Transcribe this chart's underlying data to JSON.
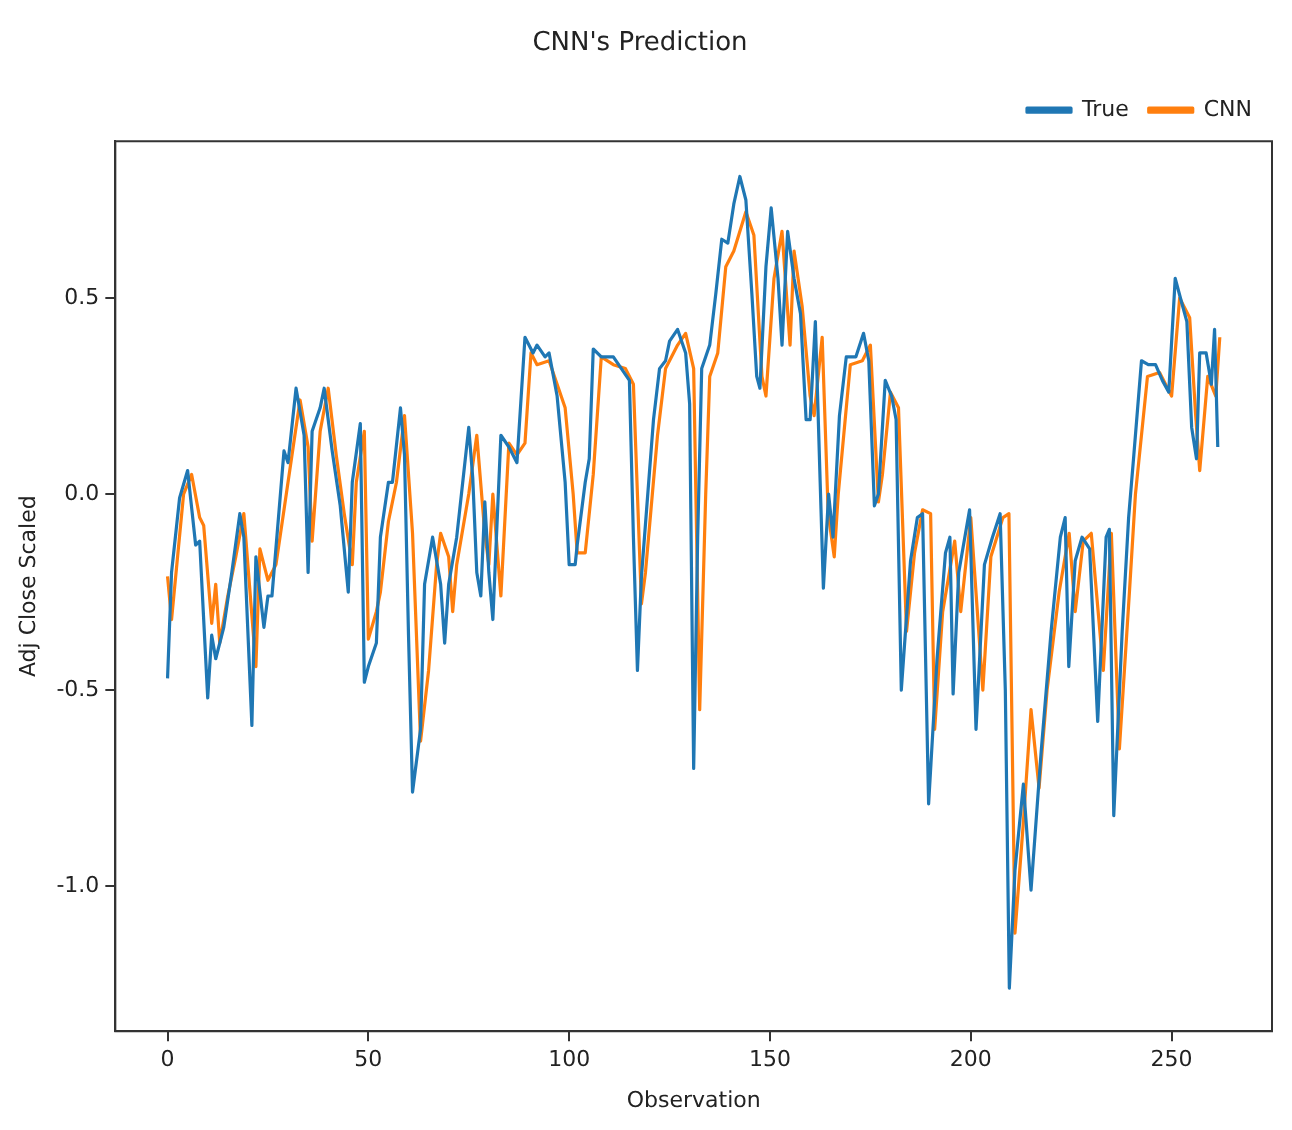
{
  "chart_data": {
    "type": "line",
    "title": "CNN's Prediction",
    "xlabel": "Observation",
    "ylabel": "Adj Close Scaled",
    "xlim": [
      -13,
      275
    ],
    "ylim": [
      -1.37,
      0.9
    ],
    "xticks": [
      0,
      50,
      100,
      150,
      200,
      250
    ],
    "yticks": [
      {
        "value": -1.0,
        "label": "-1.0"
      },
      {
        "value": -0.5,
        "label": "-0.5"
      },
      {
        "value": 0.0,
        "label": "0.0"
      },
      {
        "value": 0.5,
        "label": "0.5"
      }
    ],
    "grid": false,
    "legend": "top right",
    "marker": "none",
    "line_style": "solid",
    "series": [
      {
        "name": "True",
        "color": "#1f77b4",
        "x": [
          0,
          1,
          3,
          5,
          7,
          8,
          10,
          11,
          12,
          14,
          16,
          18,
          19,
          21,
          22,
          24,
          25,
          26,
          29,
          30,
          32,
          34,
          35,
          36,
          38,
          39,
          41,
          43,
          45,
          46,
          48,
          49,
          50,
          52,
          53,
          55,
          56,
          58,
          59,
          60,
          61,
          63,
          64,
          66,
          68,
          69,
          70,
          72,
          75,
          76,
          77,
          78,
          79,
          80,
          81,
          83,
          85,
          87,
          89,
          91,
          92,
          94,
          95,
          97,
          99,
          100,
          101.5,
          102,
          104,
          105,
          106,
          108,
          111,
          113,
          115,
          116,
          117,
          118,
          121,
          122.5,
          124,
          125,
          127,
          129,
          130,
          131,
          132,
          133,
          135,
          136.5,
          138,
          139.5,
          141,
          142.5,
          144,
          145.5,
          146.7,
          147.5,
          149,
          150.3,
          152,
          153,
          154.4,
          156,
          157.6,
          159,
          160,
          161.3,
          162.5,
          163.3,
          164.6,
          165.7,
          167.3,
          169,
          171.4,
          173.3,
          174.6,
          176,
          177,
          178.7,
          180.3,
          181.4,
          182.7,
          185,
          186.7,
          188,
          189.5,
          191.6,
          193.7,
          194.8,
          195.6,
          197,
          199.7,
          201.3,
          203.4,
          205.4,
          207.3,
          208.6,
          209.6,
          211,
          213.1,
          215,
          217.5,
          220,
          222.3,
          223.5,
          224.4,
          226,
          227.7,
          229.6,
          231.6,
          233.7,
          234.5,
          235.6,
          237.7,
          239.3,
          240.6,
          242.5,
          244.2,
          246,
          247.7,
          249.3,
          250.9,
          252.2,
          253.8,
          255,
          256.2,
          257,
          258.6,
          259.9,
          260.7,
          261.5
        ],
        "values": [
          -0.47,
          -0.2,
          -0.01,
          0.06,
          -0.13,
          -0.12,
          -0.52,
          -0.36,
          -0.42,
          -0.34,
          -0.2,
          -0.05,
          -0.11,
          -0.59,
          -0.16,
          -0.34,
          -0.26,
          -0.26,
          0.11,
          0.08,
          0.27,
          0.15,
          -0.2,
          0.16,
          0.22,
          0.27,
          0.11,
          -0.03,
          -0.25,
          0.03,
          0.18,
          -0.48,
          -0.44,
          -0.38,
          -0.11,
          0.03,
          0.03,
          0.22,
          0.1,
          -0.36,
          -0.76,
          -0.6,
          -0.23,
          -0.11,
          -0.23,
          -0.38,
          -0.23,
          -0.11,
          0.17,
          0.04,
          -0.2,
          -0.26,
          -0.02,
          -0.2,
          -0.32,
          0.15,
          0.12,
          0.08,
          0.4,
          0.36,
          0.38,
          0.35,
          0.36,
          0.25,
          0.03,
          -0.18,
          -0.18,
          -0.13,
          0.03,
          0.09,
          0.37,
          0.35,
          0.35,
          0.32,
          0.29,
          -0.11,
          -0.45,
          -0.21,
          0.19,
          0.32,
          0.34,
          0.39,
          0.42,
          0.36,
          0.23,
          -0.7,
          -0.11,
          0.32,
          0.38,
          0.51,
          0.65,
          0.64,
          0.74,
          0.81,
          0.75,
          0.51,
          0.3,
          0.27,
          0.58,
          0.73,
          0.55,
          0.38,
          0.67,
          0.55,
          0.46,
          0.19,
          0.19,
          0.44,
          0.03,
          -0.24,
          0.0,
          -0.11,
          0.2,
          0.35,
          0.35,
          0.41,
          0.34,
          -0.03,
          0.0,
          0.29,
          0.25,
          0.19,
          -0.5,
          -0.17,
          -0.06,
          -0.05,
          -0.79,
          -0.42,
          -0.15,
          -0.11,
          -0.51,
          -0.2,
          -0.04,
          -0.6,
          -0.18,
          -0.11,
          -0.05,
          -0.5,
          -1.26,
          -0.96,
          -0.74,
          -1.01,
          -0.66,
          -0.35,
          -0.11,
          -0.06,
          -0.44,
          -0.17,
          -0.11,
          -0.14,
          -0.58,
          -0.11,
          -0.09,
          -0.82,
          -0.35,
          -0.06,
          0.1,
          0.34,
          0.33,
          0.33,
          0.29,
          0.26,
          0.55,
          0.5,
          0.44,
          0.17,
          0.09,
          0.36,
          0.36,
          0.28,
          0.42,
          0.12
        ]
      },
      {
        "name": "CNN",
        "color": "#ff7f0e",
        "x": [
          0,
          1,
          4,
          6,
          8,
          9,
          11,
          12,
          13,
          15,
          17,
          19,
          22,
          23,
          25,
          27,
          31,
          33,
          35,
          36,
          38,
          40,
          42,
          44,
          46,
          47,
          49,
          50,
          52,
          53,
          55,
          57,
          59,
          61,
          63,
          65,
          67,
          68,
          70,
          71,
          72,
          75,
          77,
          79,
          80,
          81,
          83,
          85,
          87,
          89,
          90.5,
          92,
          95,
          99,
          101,
          102,
          104,
          106,
          108,
          111,
          114,
          116,
          118,
          119,
          122,
          124,
          127,
          129,
          131,
          132.5,
          134,
          135,
          137,
          139,
          141,
          144,
          146,
          148,
          149,
          151,
          153,
          155,
          156,
          158,
          160,
          161,
          163,
          164.5,
          166,
          167,
          170,
          173,
          175,
          177,
          178,
          180,
          182,
          184,
          186,
          188,
          190,
          191,
          193,
          196,
          197.5,
          200,
          203,
          205,
          208,
          209.5,
          211,
          213,
          215,
          217,
          219,
          222,
          224.5,
          226,
          228,
          230,
          233,
          235,
          237,
          239.5,
          241,
          242,
          244,
          247,
          250,
          252,
          254.5,
          256,
          257,
          259,
          261,
          262
        ],
        "values": [
          -0.21,
          -0.32,
          0.0,
          0.05,
          -0.06,
          -0.08,
          -0.33,
          -0.23,
          -0.38,
          -0.26,
          -0.16,
          -0.05,
          -0.44,
          -0.14,
          -0.22,
          -0.18,
          0.1,
          0.24,
          0.12,
          -0.12,
          0.16,
          0.27,
          0.1,
          -0.05,
          -0.18,
          0.03,
          0.16,
          -0.37,
          -0.3,
          -0.25,
          -0.07,
          0.03,
          0.2,
          -0.1,
          -0.63,
          -0.45,
          -0.18,
          -0.1,
          -0.16,
          -0.3,
          -0.18,
          0.0,
          0.15,
          -0.1,
          -0.18,
          0.0,
          -0.26,
          0.13,
          0.1,
          0.13,
          0.36,
          0.33,
          0.34,
          0.22,
          0.0,
          -0.15,
          -0.15,
          0.05,
          0.35,
          0.33,
          0.32,
          0.28,
          -0.28,
          -0.2,
          0.15,
          0.32,
          0.38,
          0.41,
          0.32,
          -0.55,
          0.0,
          0.3,
          0.36,
          0.58,
          0.62,
          0.72,
          0.66,
          0.3,
          0.25,
          0.55,
          0.67,
          0.38,
          0.62,
          0.48,
          0.25,
          0.2,
          0.4,
          -0.05,
          -0.16,
          0.0,
          0.33,
          0.34,
          0.38,
          -0.02,
          0.05,
          0.26,
          0.22,
          -0.35,
          -0.15,
          -0.04,
          -0.05,
          -0.6,
          -0.3,
          -0.12,
          -0.3,
          -0.06,
          -0.5,
          -0.16,
          -0.06,
          -0.05,
          -1.12,
          -0.85,
          -0.55,
          -0.75,
          -0.5,
          -0.25,
          -0.1,
          -0.3,
          -0.12,
          -0.1,
          -0.45,
          -0.1,
          -0.65,
          -0.25,
          0.0,
          0.1,
          0.3,
          0.31,
          0.25,
          0.5,
          0.45,
          0.2,
          0.06,
          0.3,
          0.25,
          0.4
        ]
      }
    ]
  }
}
